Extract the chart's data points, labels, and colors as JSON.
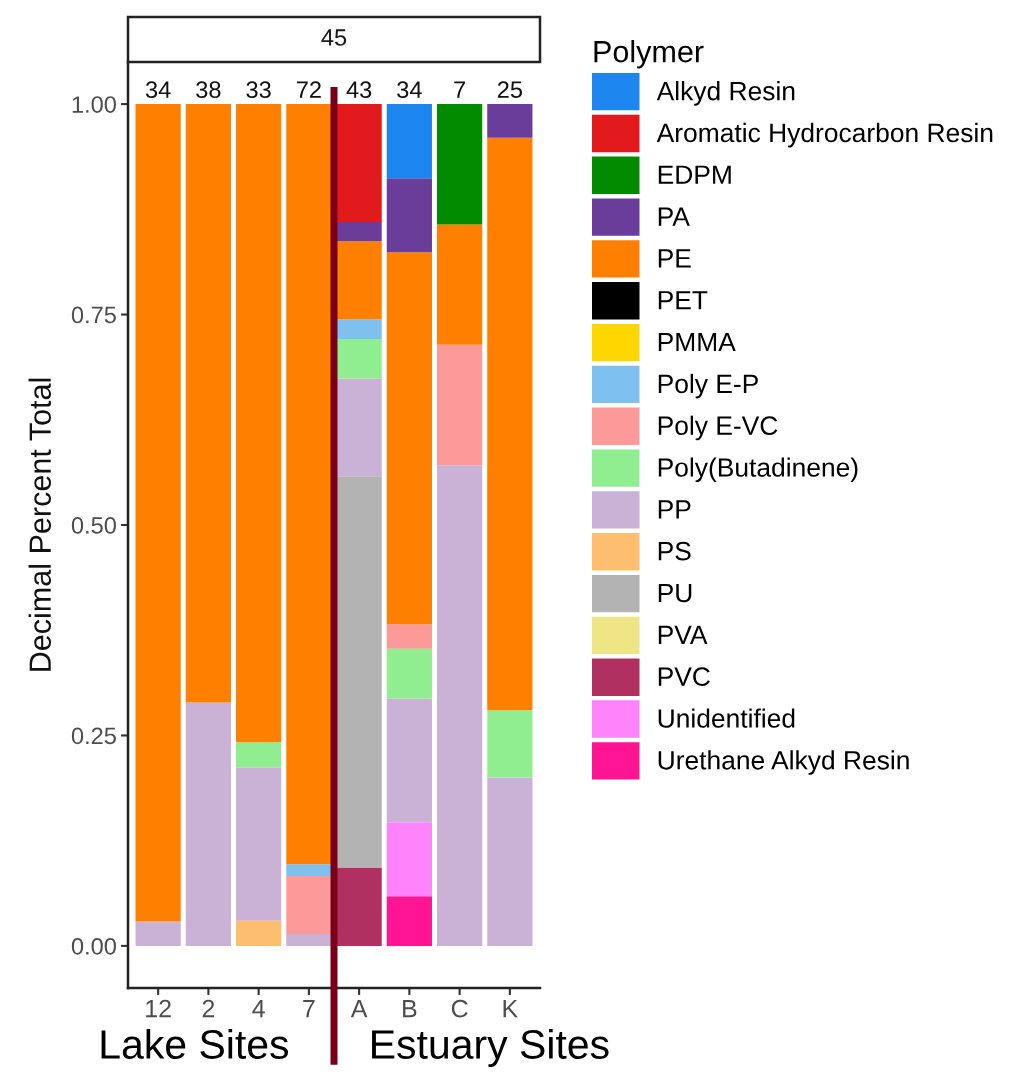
{
  "chart_data": {
    "type": "bar",
    "stacked": true,
    "title": "45",
    "ylabel": "Decimal Percent Total",
    "legend_title": "Polymer",
    "legend": "right",
    "categories": [
      "12",
      "2",
      "4",
      "7",
      "A",
      "B",
      "C",
      "K"
    ],
    "ylim": [
      -0.05,
      1.05
    ],
    "yticks": [
      {
        "value": 0,
        "label": "0.00"
      },
      {
        "value": 0.25,
        "label": "0.25"
      },
      {
        "value": 0.5,
        "label": "0.50"
      },
      {
        "value": 0.75,
        "label": "0.75"
      },
      {
        "value": 1,
        "label": "1.00"
      }
    ],
    "annotations": [
      {
        "text": "34",
        "x": "12",
        "y": 1
      },
      {
        "text": "38",
        "x": "2",
        "y": 1
      },
      {
        "text": "33",
        "x": "4",
        "y": 1
      },
      {
        "text": "72",
        "x": "7",
        "y": 1
      },
      {
        "text": "43",
        "x": "A",
        "y": 1
      },
      {
        "text": "34",
        "x": "B",
        "y": 1
      },
      {
        "text": "7",
        "x": "C",
        "y": 1
      },
      {
        "text": "25",
        "x": "K",
        "y": 1
      },
      "Lake Sites",
      "Estuary Sites"
    ],
    "series": [
      {
        "name": "Urethane Alkyd Resin",
        "color": "#ff1493",
        "values": [
          null,
          null,
          null,
          null,
          null,
          0.059,
          null,
          null
        ]
      },
      {
        "name": "Unidentified",
        "color": "#ff83fa",
        "values": [
          null,
          null,
          null,
          null,
          null,
          0.088,
          null,
          null
        ]
      },
      {
        "name": "PVC",
        "color": "#b03060",
        "values": [
          null,
          null,
          null,
          null,
          0.093,
          null,
          null,
          null
        ]
      },
      {
        "name": "PVA",
        "color": "#eee685",
        "values": [
          null,
          null,
          null,
          null,
          null,
          null,
          null,
          null
        ]
      },
      {
        "name": "PU",
        "color": "#b3b3b3",
        "values": [
          null,
          null,
          null,
          null,
          0.465,
          null,
          null,
          null
        ]
      },
      {
        "name": "PS",
        "color": "#fdbf6f",
        "values": [
          null,
          null,
          0.03,
          null,
          null,
          null,
          null,
          null
        ]
      },
      {
        "name": "PP",
        "color": "#cab2d6",
        "values": [
          0.029,
          0.289,
          0.182,
          0.014,
          0.116,
          0.147,
          0.571,
          0.2
        ]
      },
      {
        "name": "Poly(Butadinene)",
        "color": "#90ee90",
        "values": [
          null,
          null,
          0.03,
          null,
          0.047,
          0.059,
          null,
          0.08
        ]
      },
      {
        "name": "Poly E-VC",
        "color": "#fb9a99",
        "values": [
          null,
          null,
          null,
          0.069,
          null,
          0.029,
          0.143,
          null
        ]
      },
      {
        "name": "Poly E-P",
        "color": "#7ec0ee",
        "values": [
          null,
          null,
          null,
          0.014,
          0.023,
          null,
          null,
          null
        ]
      },
      {
        "name": "PMMA",
        "color": "#ffd700",
        "values": [
          null,
          null,
          null,
          null,
          null,
          null,
          null,
          null
        ]
      },
      {
        "name": "PET",
        "color": "#000000",
        "values": [
          null,
          null,
          null,
          null,
          null,
          null,
          null,
          null
        ]
      },
      {
        "name": "PE",
        "color": "#ff7f00",
        "values": [
          0.971,
          0.711,
          0.758,
          0.903,
          0.093,
          0.442,
          0.143,
          0.68
        ]
      },
      {
        "name": "PA",
        "color": "#6a3d9a",
        "values": [
          null,
          null,
          null,
          null,
          0.023,
          0.088,
          null,
          0.04
        ]
      },
      {
        "name": "EDPM",
        "color": "#008b00",
        "values": [
          null,
          null,
          null,
          null,
          null,
          null,
          0.143,
          null
        ]
      },
      {
        "name": "Aromatic Hydrocarbon Resin",
        "color": "#e31a1c",
        "values": [
          null,
          null,
          null,
          null,
          0.14,
          null,
          null,
          null
        ]
      },
      {
        "name": "Alkyd Resin",
        "color": "#1c86ee",
        "values": [
          null,
          null,
          null,
          null,
          null,
          0.088,
          null,
          null
        ]
      }
    ]
  }
}
